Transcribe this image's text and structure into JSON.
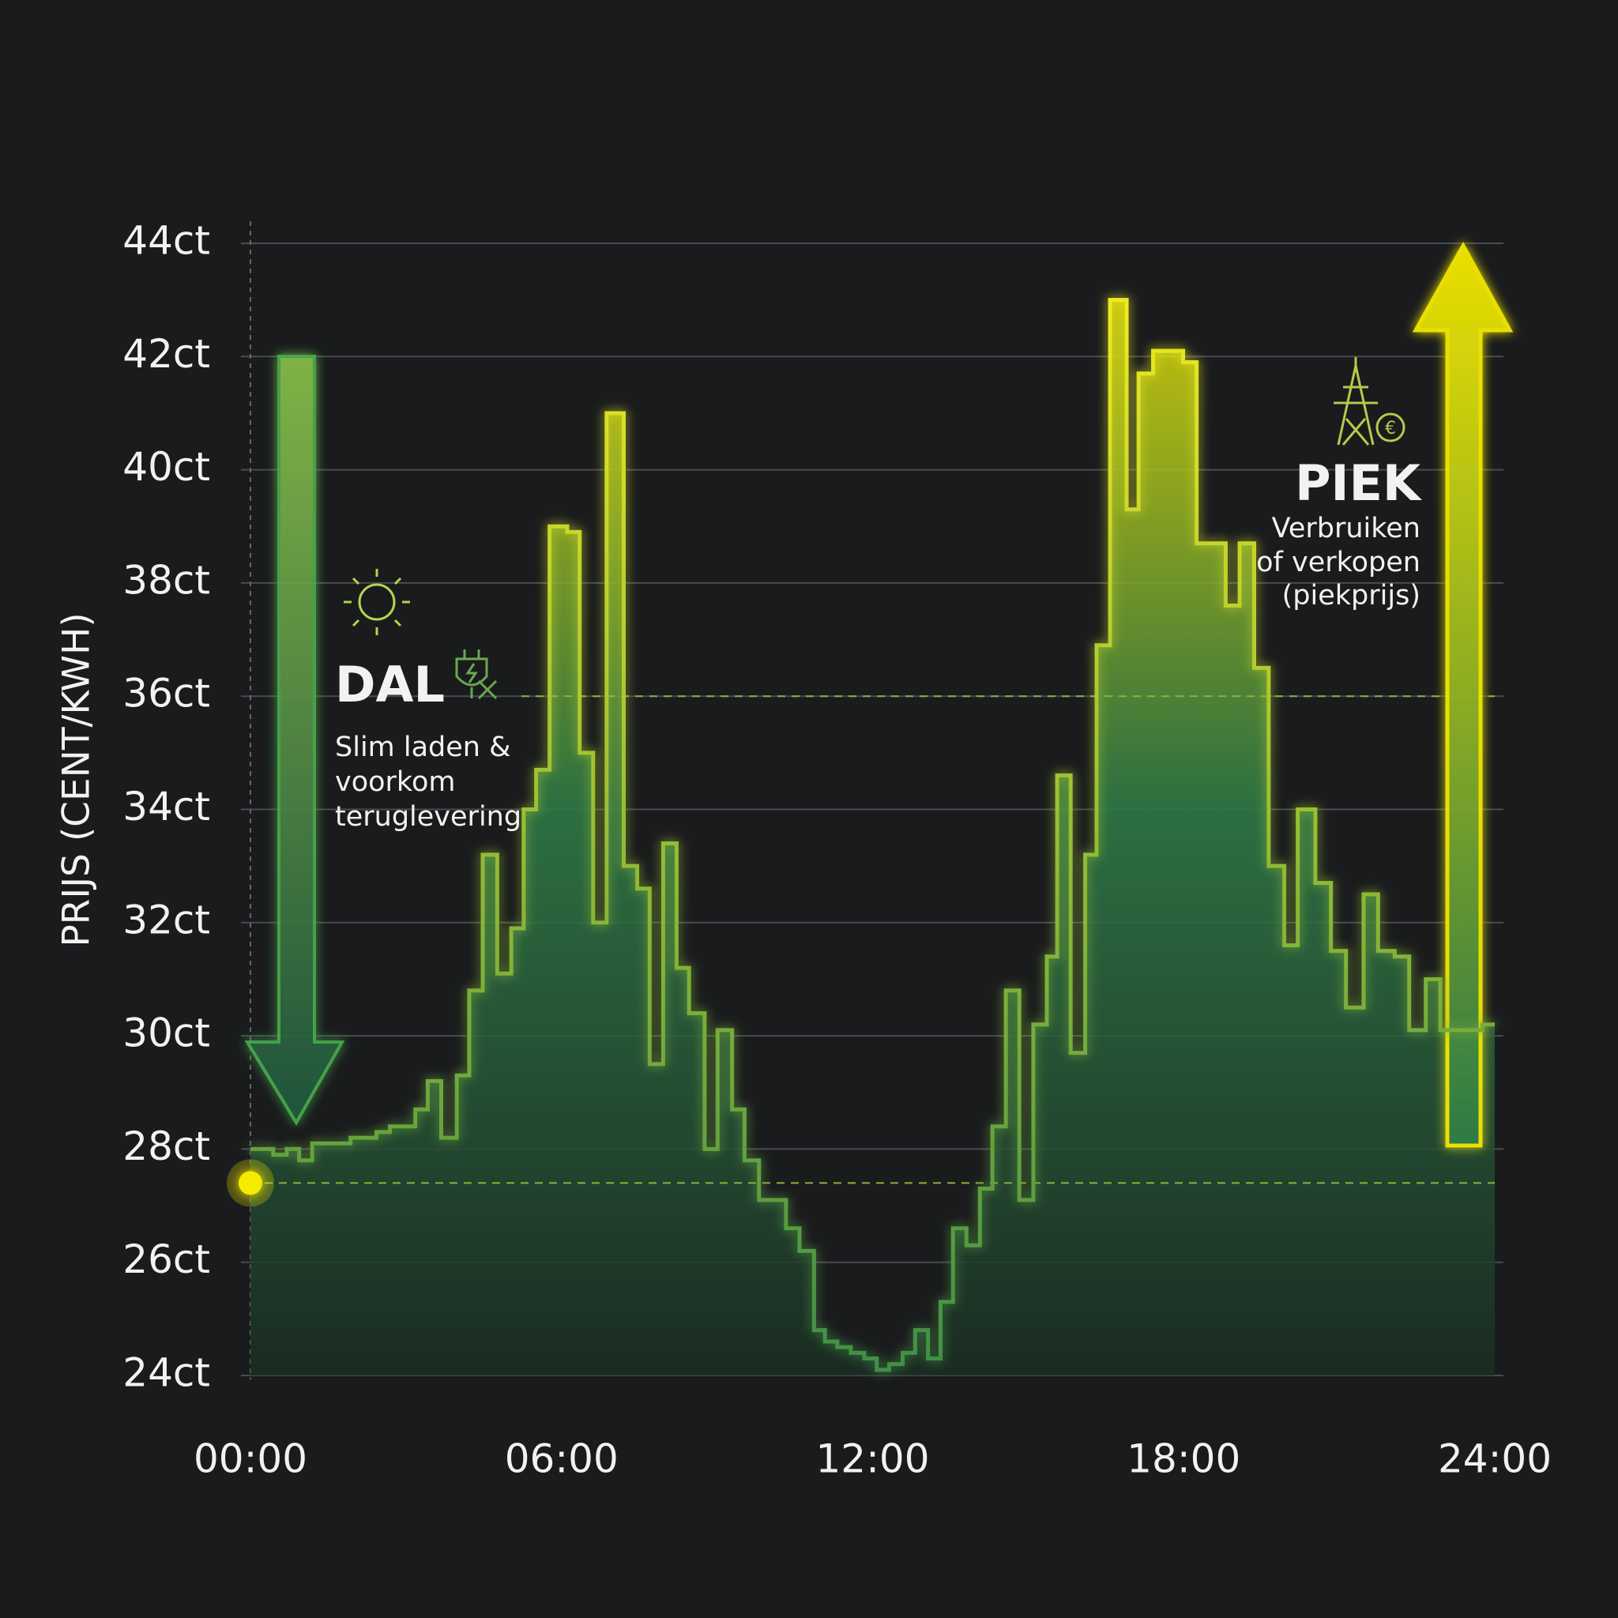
{
  "chart_data": {
    "type": "step",
    "y_label": "PRIJS (CENT/KWH)",
    "x": [
      0,
      0.44,
      0.7,
      0.94,
      1.19,
      1.93,
      2.43,
      2.69,
      3.18,
      3.42,
      3.68,
      3.98,
      4.22,
      4.48,
      4.76,
      5.03,
      5.27,
      5.51,
      5.77,
      6.11,
      6.35,
      6.61,
      6.87,
      7.2,
      7.46,
      7.7,
      7.96,
      8.22,
      8.46,
      8.76,
      9.01,
      9.29,
      9.53,
      9.81,
      10.33,
      10.59,
      10.87,
      11.08,
      11.32,
      11.58,
      11.84,
      12.08,
      12.32,
      12.58,
      12.82,
      13.07,
      13.31,
      13.55,
      13.81,
      14.07,
      14.31,
      14.57,
      14.83,
      15.1,
      15.36,
      15.56,
      15.82,
      16.1,
      16.32,
      16.58,
      16.9,
      17.13,
      17.41,
      17.99,
      18.25,
      18.81,
      19.08,
      19.36,
      19.64,
      19.94,
      20.2,
      20.54,
      20.84,
      21.13,
      21.47,
      21.75,
      22.07,
      22.35,
      22.67,
      22.95,
      23.76
    ],
    "values": [
      28,
      27.9,
      28,
      27.8,
      28.1,
      28.2,
      28.3,
      28.4,
      28.7,
      29.2,
      28.2,
      29.3,
      30.8,
      33.2,
      31.1,
      31.9,
      34,
      34.7,
      39,
      38.9,
      35,
      32,
      41,
      33,
      32.6,
      29.5,
      33.4,
      31.2,
      30.4,
      28,
      30.1,
      28.7,
      27.8,
      27.1,
      26.6,
      26.2,
      24.8,
      24.6,
      24.5,
      24.4,
      24.3,
      24.1,
      24.2,
      24.4,
      24.8,
      24.3,
      25.3,
      26.6,
      26.3,
      27.3,
      28.4,
      30.8,
      27.1,
      30.2,
      31.4,
      34.6,
      29.7,
      33.2,
      36.9,
      43,
      39.3,
      41.7,
      42.1,
      41.9,
      38.7,
      37.6,
      38.7,
      36.5,
      33,
      31.6,
      34,
      32.7,
      31.5,
      30.5,
      32.5,
      31.5,
      31.4,
      30.1,
      31,
      30.1,
      30.2
    ],
    "step": "post",
    "colors": [
      "#f5ea00",
      "#2f7d48",
      "#1b2e23"
    ],
    "line_colors": [
      "#f7ef20",
      "#3f8f46"
    ],
    "xlim": [
      0,
      24
    ],
    "xticks": [
      {
        "value": 0,
        "label": "00:00"
      },
      {
        "value": 6,
        "label": "06:00"
      },
      {
        "value": 12,
        "label": "12:00"
      },
      {
        "value": 18,
        "label": "18:00"
      },
      {
        "value": 24,
        "label": "24:00"
      }
    ],
    "ylim": [
      24,
      44
    ],
    "yticks": [
      {
        "value": 24,
        "label": "24ct"
      },
      {
        "value": 26,
        "label": "26ct"
      },
      {
        "value": 28,
        "label": "28ct"
      },
      {
        "value": 30,
        "label": "30ct"
      },
      {
        "value": 32,
        "label": "32ct"
      },
      {
        "value": 34,
        "label": "34ct"
      },
      {
        "value": 36,
        "label": "36ct"
      },
      {
        "value": 38,
        "label": "38ct"
      },
      {
        "value": 40,
        "label": "40ct"
      },
      {
        "value": 42,
        "label": "42ct"
      },
      {
        "value": 44,
        "label": "44ct"
      }
    ],
    "hlines": [
      36,
      27.4
    ],
    "grid": true,
    "annotations": [
      {
        "title": "DAL",
        "lines": [
          "Slim laden &",
          "voorkom",
          "teruglevering"
        ]
      },
      {
        "title": "PIEK",
        "lines": [
          "Verbruiken",
          "of verkopen",
          "(piekprijs)"
        ]
      }
    ]
  }
}
